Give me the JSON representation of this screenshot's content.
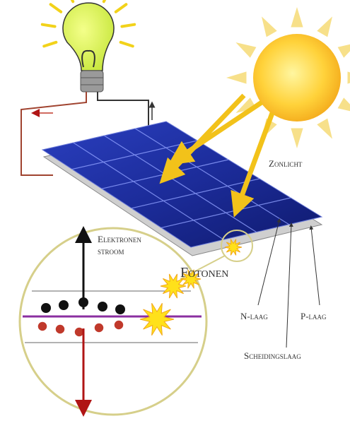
{
  "labels": {
    "zonlicht": "Zonlicht",
    "elektronen_stroom": [
      "Elektronen",
      "stroom"
    ],
    "fotonen": "Fotonen",
    "n_laag": "N-laag",
    "p_laag": "P-laag",
    "scheidingslaag": "Scheidingslaag"
  }
}
